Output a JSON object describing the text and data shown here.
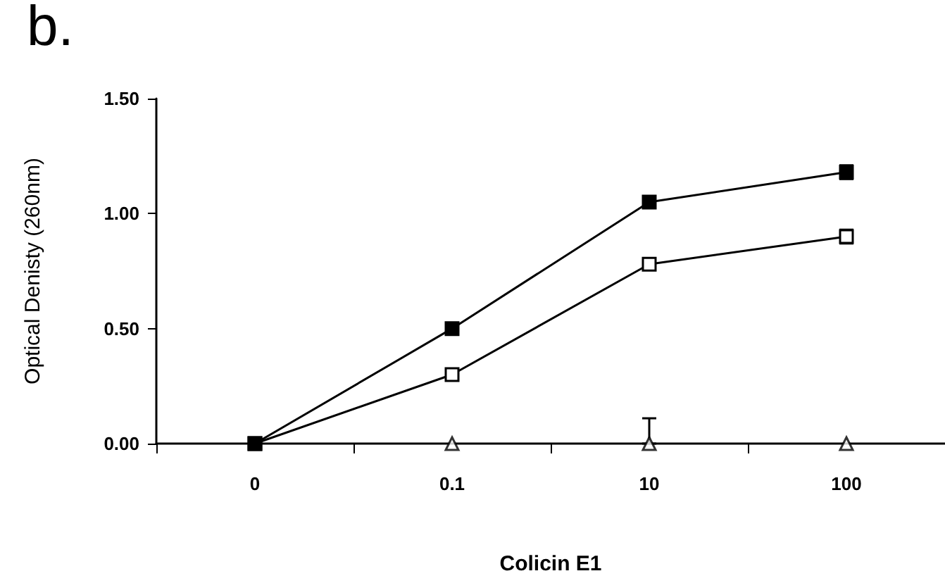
{
  "chart_data": {
    "type": "line",
    "title": "b.",
    "xlabel": "Colicin E1",
    "ylabel": "Optical Denisty (260nm)",
    "categories": [
      "0",
      "0.1",
      "10",
      "100"
    ],
    "ylim": [
      0,
      1.5
    ],
    "yticks": [
      {
        "value": 0,
        "label": "0.00"
      },
      {
        "value": 0.5,
        "label": "0.50"
      },
      {
        "value": 1,
        "label": "1.00"
      },
      {
        "value": 1.5,
        "label": "1.50"
      }
    ],
    "series": [
      {
        "color": "#000000",
        "marker": "square",
        "values": [
          0,
          0.5,
          1.05,
          1.18
        ],
        "errors": [
          null,
          0.02,
          0.02,
          0.03
        ]
      },
      {
        "color": "#ffffff",
        "marker": "square",
        "values": [
          0,
          0.3,
          0.78,
          0.9
        ],
        "errors": [
          null,
          0.02,
          0.02,
          0.03
        ]
      },
      {
        "type": "scatter",
        "color": "#ffffff",
        "marker": "triangle",
        "x": [
          "0.1",
          "10",
          "100"
        ],
        "values": [
          0,
          0,
          0
        ],
        "errors": [
          null,
          [
            0,
            0.11
          ],
          null
        ]
      }
    ]
  }
}
